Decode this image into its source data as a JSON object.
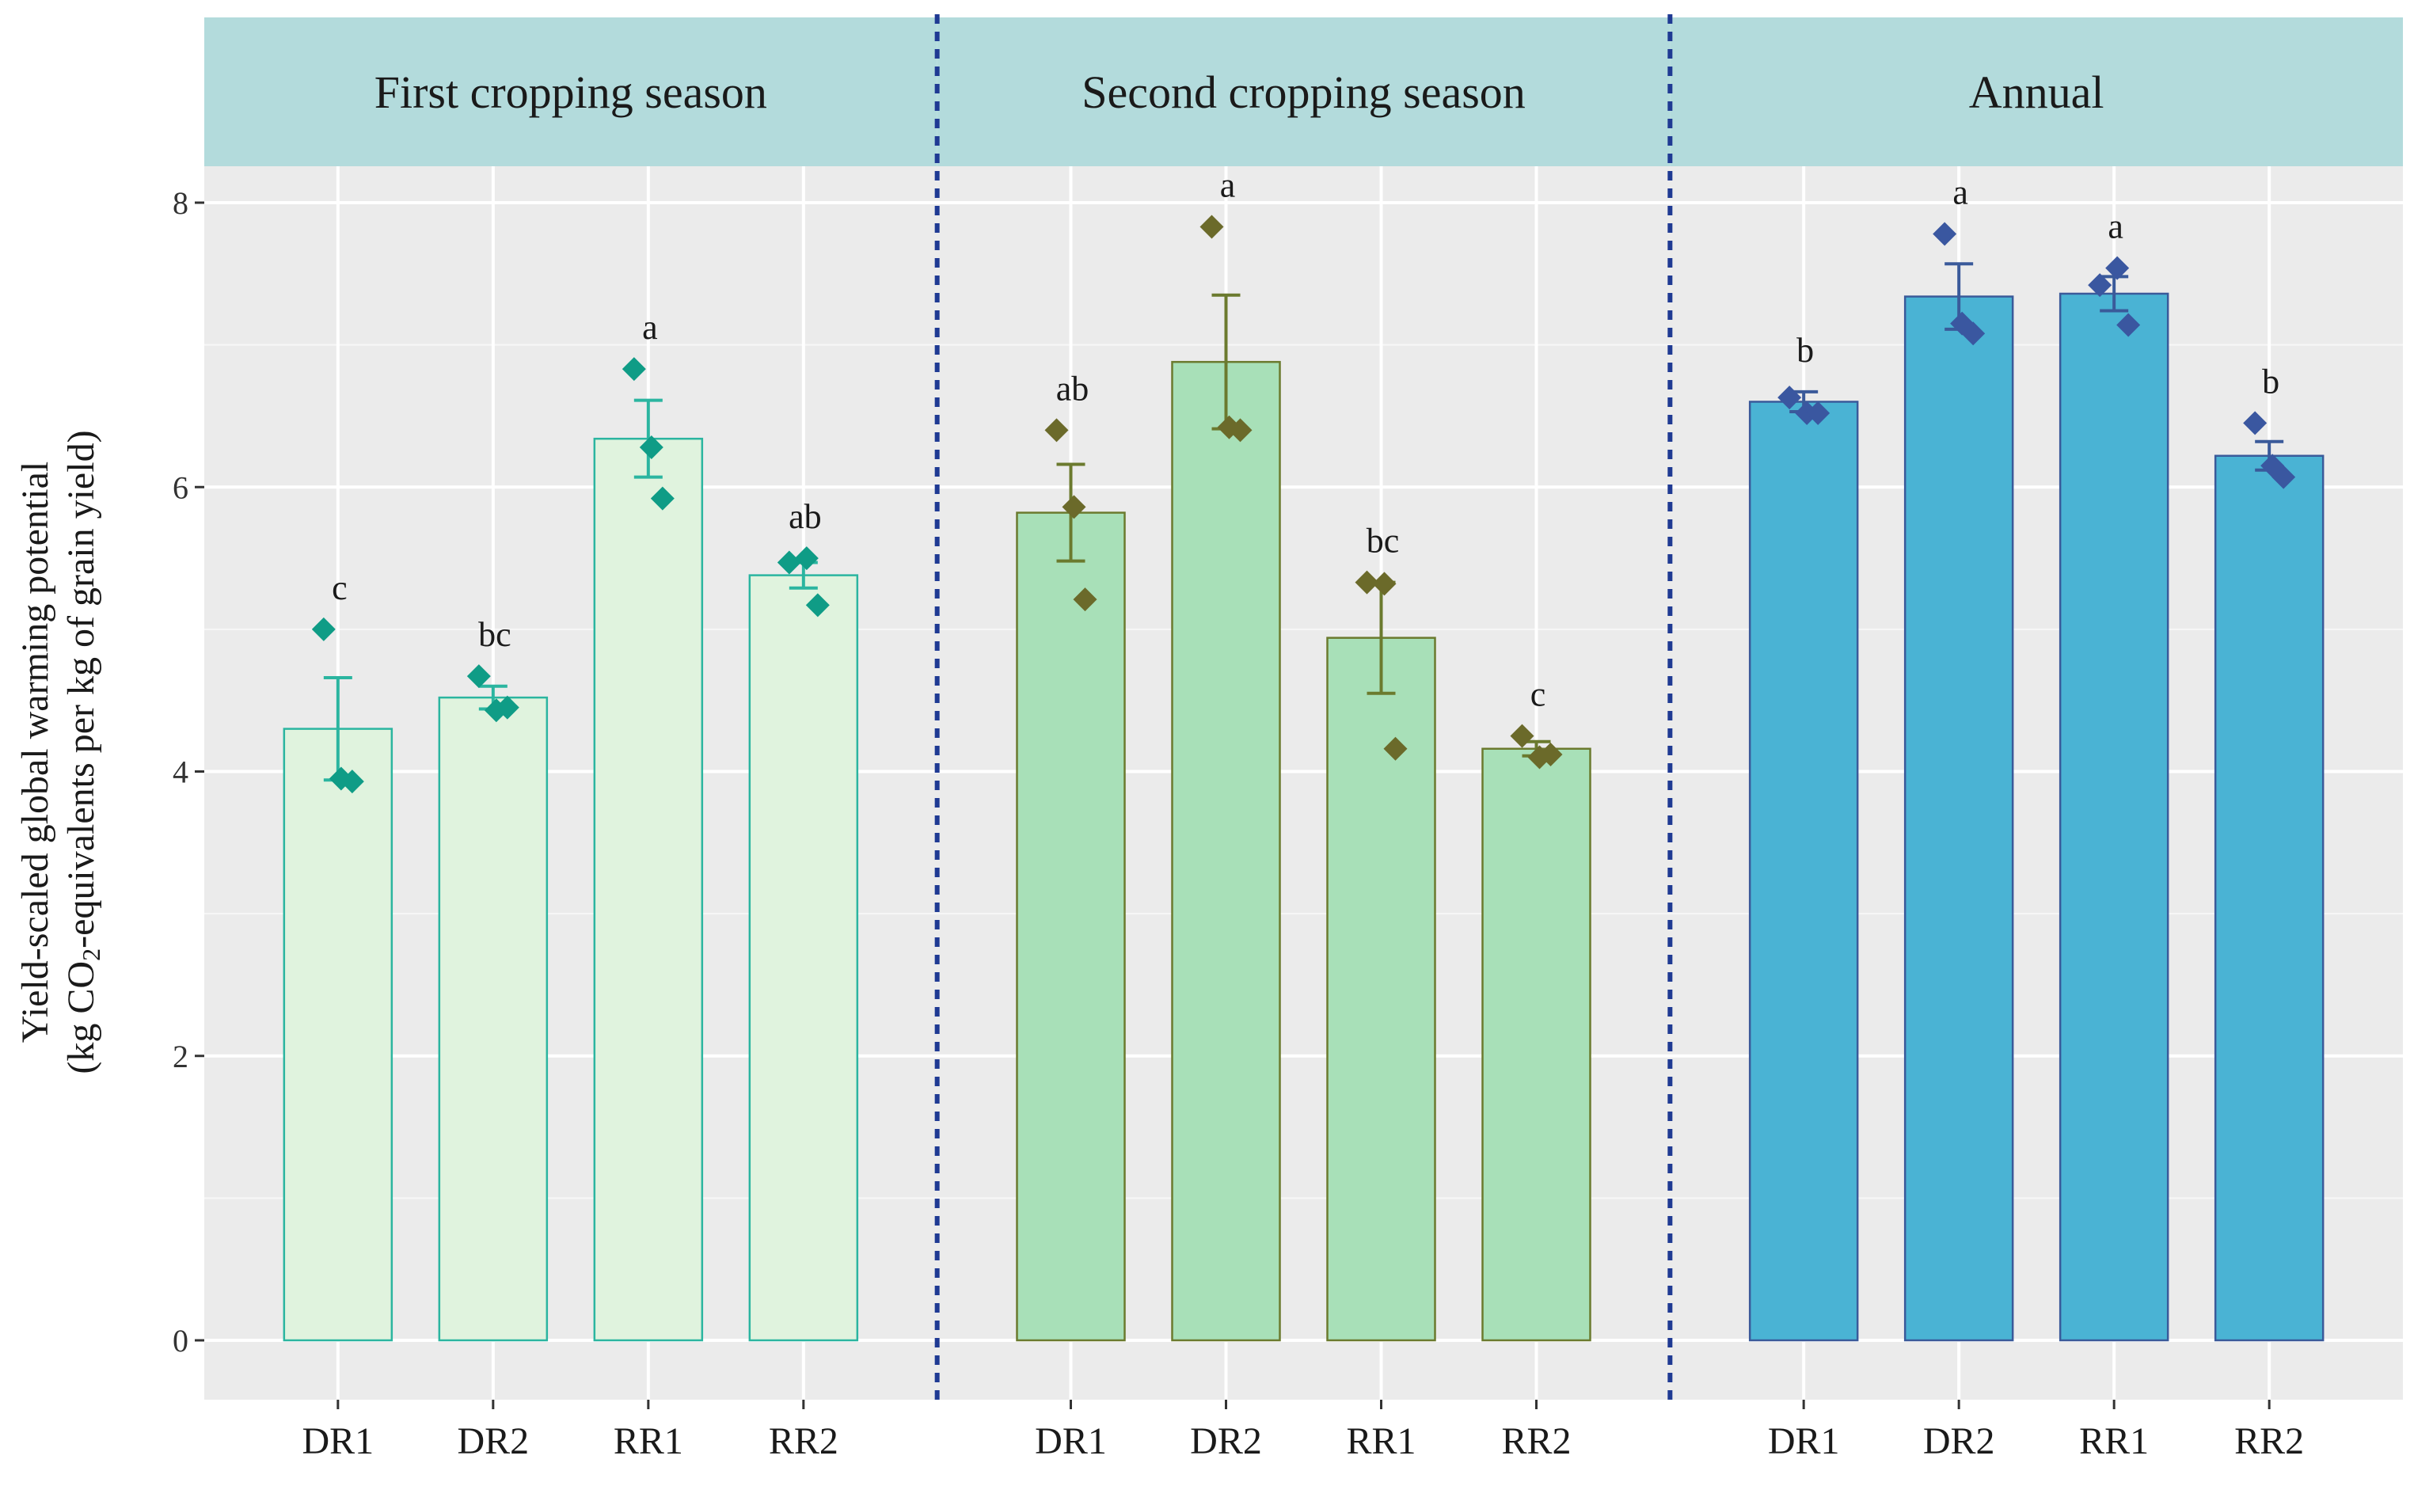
{
  "chart_data": {
    "type": "bar",
    "ylabel": "Yield-scaled global warming potential",
    "ylabel_line2_pre": "(kg CO",
    "ylabel_line2_sub": "2",
    "ylabel_line2_post": "-equivalents per kg of grain yield)",
    "ylim": [
      -0.4,
      8.5
    ],
    "yticks": [
      "0",
      "2",
      "4",
      "6",
      "8"
    ],
    "grid": true,
    "facets": [
      {
        "title": "First cropping season",
        "fill": "#e0f3de",
        "stroke": "#2bb5a0",
        "point_color": "#0f9c86",
        "categories": [
          "DR1",
          "DR2",
          "RR1",
          "RR2"
        ],
        "values": [
          4.3,
          4.52,
          6.34,
          5.38
        ],
        "errors": [
          0.36,
          0.08,
          0.27,
          0.09
        ],
        "letters": [
          "c",
          "bc",
          "a",
          "ab"
        ],
        "points": [
          [
            5.0,
            3.95,
            3.93
          ],
          [
            4.67,
            4.43,
            4.45
          ],
          [
            6.83,
            6.28,
            5.92
          ],
          [
            5.47,
            5.5,
            5.17
          ]
        ]
      },
      {
        "title": "Second cropping season",
        "fill": "#a8e0b8",
        "stroke": "#6b7a2e",
        "point_color": "#6b6a2a",
        "categories": [
          "DR1",
          "DR2",
          "RR1",
          "RR2"
        ],
        "values": [
          5.82,
          6.88,
          4.94,
          4.16
        ],
        "errors": [
          0.34,
          0.47,
          0.39,
          0.05
        ],
        "letters": [
          "ab",
          "a",
          "bc",
          "c"
        ],
        "points": [
          [
            6.4,
            5.86,
            5.21
          ],
          [
            7.83,
            6.42,
            6.4
          ],
          [
            5.33,
            5.32,
            4.16
          ],
          [
            4.25,
            4.1,
            4.12
          ]
        ]
      },
      {
        "title": "Annual",
        "fill": "#4ab3d4",
        "stroke": "#3a5a9a",
        "point_color": "#3a57a0",
        "categories": [
          "DR1",
          "DR2",
          "RR1",
          "RR2"
        ],
        "values": [
          6.6,
          7.34,
          7.36,
          6.22
        ],
        "errors": [
          0.07,
          0.23,
          0.12,
          0.1
        ],
        "letters": [
          "b",
          "a",
          "a",
          "b"
        ],
        "points": [
          [
            6.63,
            6.52,
            6.52
          ],
          [
            7.78,
            7.15,
            7.08
          ],
          [
            7.42,
            7.54,
            7.14
          ],
          [
            6.45,
            6.15,
            6.07
          ]
        ]
      }
    ]
  }
}
